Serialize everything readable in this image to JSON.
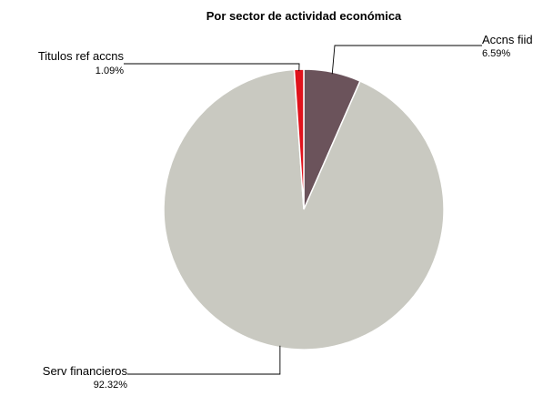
{
  "chart_data": {
    "type": "pie",
    "title": "Por sector de actividad económica",
    "slices": [
      {
        "label": "Accns fiid",
        "value": 6.59,
        "value_label": "6.59%",
        "color": "#6b535b"
      },
      {
        "label": "Serv financieros",
        "value": 92.32,
        "value_label": "92.32%",
        "color": "#c9c9c1"
      },
      {
        "label": "Titulos ref accns",
        "value": 1.09,
        "value_label": "1.09%",
        "color": "#e0121c"
      }
    ],
    "start_angle": "12 o'clock, clockwise",
    "legend": "none"
  }
}
